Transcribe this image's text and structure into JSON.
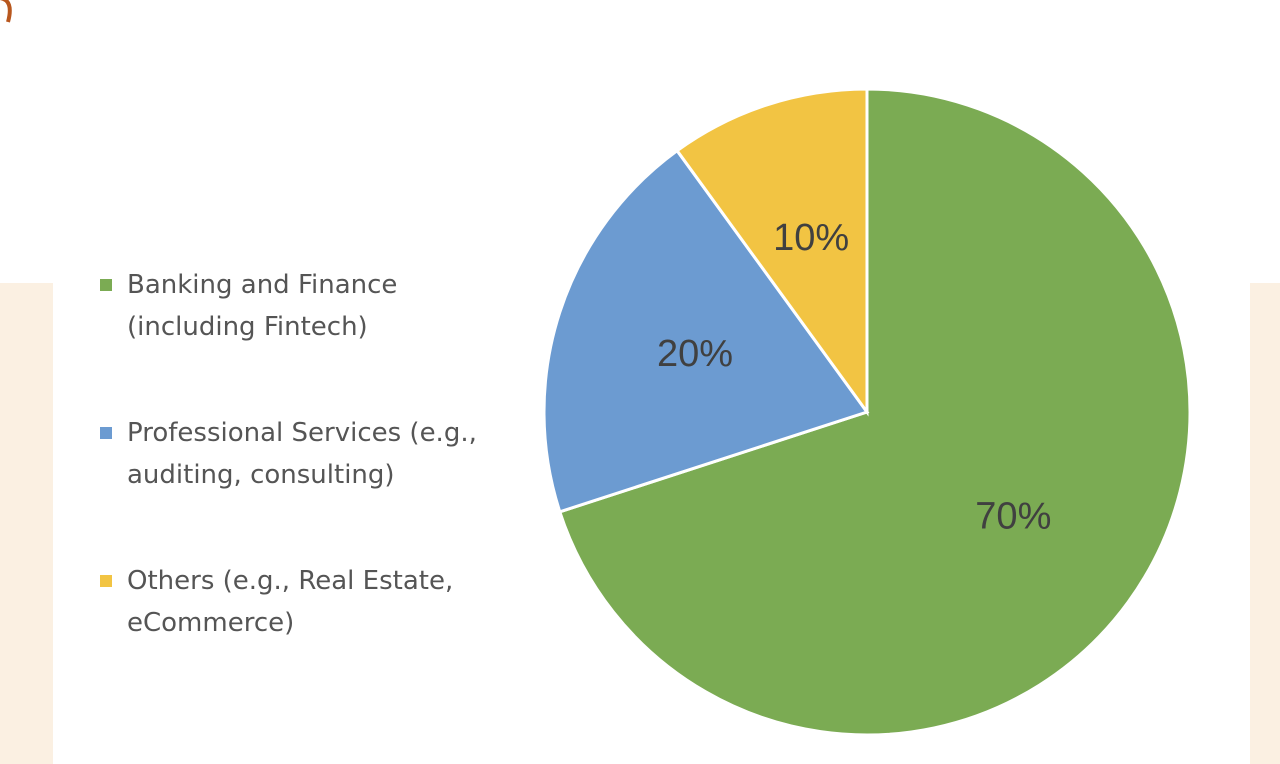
{
  "chart_data": {
    "type": "pie",
    "categories": [
      "Banking and Finance (including Fintech)",
      "Professional Services (e.g., auditing, consulting)",
      "Others (e.g., Real Estate, eCommerce)"
    ],
    "values": [
      70,
      20,
      10
    ],
    "value_labels": [
      "70%",
      "20%",
      "10%"
    ],
    "colors": [
      "#7bab53",
      "#6c9bd1",
      "#f2c443"
    ],
    "legend": "left"
  }
}
